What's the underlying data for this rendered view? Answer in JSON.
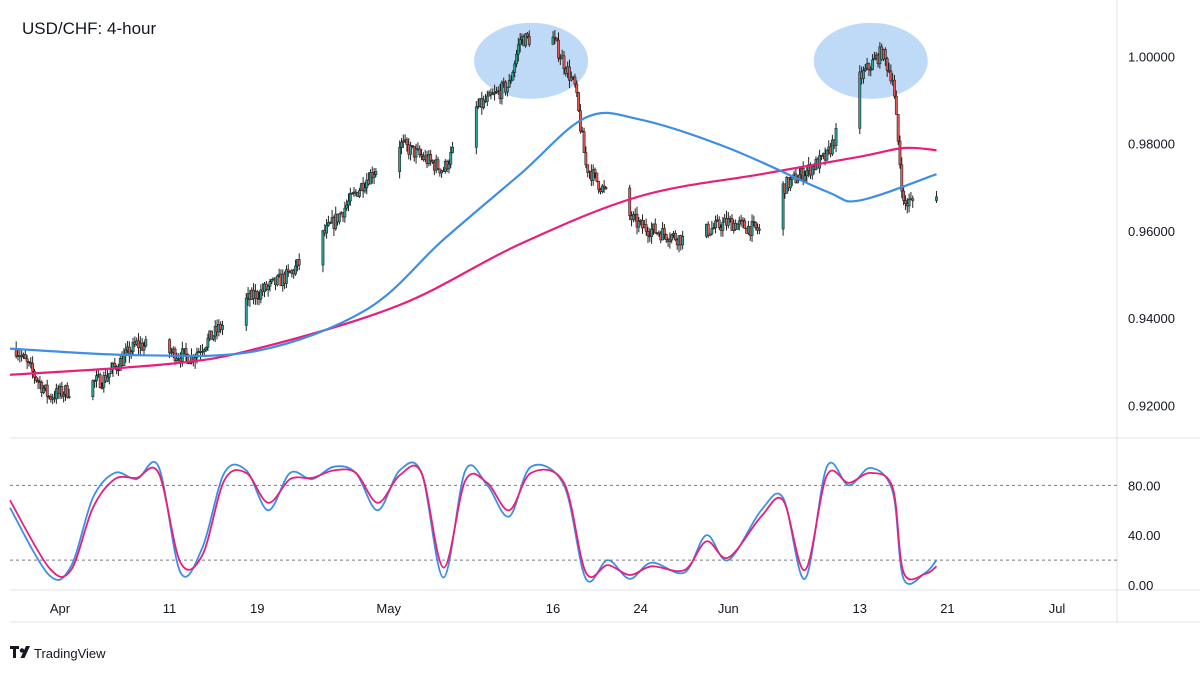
{
  "colors": {
    "bull": "#26a69a",
    "bear": "#ef5350",
    "candle": "#222222",
    "sma100": "#3d8fe6",
    "sma200": "#e91e7a",
    "stoch_k": "#3d8fe6",
    "stoch_d": "#e91e7a",
    "highlight": "#a9cdf4",
    "grid": "#e0e3eb",
    "dash": "#787b86"
  },
  "brand": {
    "icon": "tradingview-logo-icon",
    "label": "TradingView"
  },
  "chart_data": [
    {
      "type": "candlestick",
      "title": "USD/CHF: 4-hour",
      "x_ticks": [
        "Apr",
        "11",
        "19",
        "May",
        "16",
        "24",
        "Jun",
        "13",
        "21",
        "Jul"
      ],
      "y_ticks": [
        "1.00000",
        "0.98000",
        "0.96000",
        "0.94000",
        "0.92000"
      ],
      "ylim": [
        0.9125,
        1.0118
      ],
      "price_path": [
        {
          "date": "Mar 28",
          "close": 0.933
        },
        {
          "date": "Mar 31",
          "close": 0.922
        },
        {
          "date": "Apr 5",
          "close": 0.926
        },
        {
          "date": "Apr 8",
          "close": 0.934
        },
        {
          "date": "Apr 13",
          "close": 0.931
        },
        {
          "date": "Apr 18",
          "close": 0.944
        },
        {
          "date": "Apr 22",
          "close": 0.95
        },
        {
          "date": "Apr 26",
          "close": 0.962
        },
        {
          "date": "Apr 29",
          "close": 0.972
        },
        {
          "date": "May 2",
          "close": 0.98
        },
        {
          "date": "May 6",
          "close": 0.974
        },
        {
          "date": "May 9",
          "close": 0.988
        },
        {
          "date": "May 12",
          "close": 0.9935
        },
        {
          "date": "May 13",
          "close": 1.004
        },
        {
          "date": "May 16",
          "close": 1.004
        },
        {
          "date": "May 18",
          "close": 0.993
        },
        {
          "date": "May 19",
          "close": 0.975
        },
        {
          "date": "May 21",
          "close": 0.968
        },
        {
          "date": "May 24",
          "close": 0.961
        },
        {
          "date": "May 28",
          "close": 0.958
        },
        {
          "date": "Jun 1",
          "close": 0.962
        },
        {
          "date": "Jun 4",
          "close": 0.96
        },
        {
          "date": "Jun 6",
          "close": 0.97
        },
        {
          "date": "Jun 10",
          "close": 0.977
        },
        {
          "date": "Jun 13",
          "close": 0.995
        },
        {
          "date": "Jun 15",
          "close": 1.001
        },
        {
          "date": "Jun 16",
          "close": 0.995
        },
        {
          "date": "Jun 17",
          "close": 0.966
        },
        {
          "date": "Jun 20",
          "close": 0.969
        }
      ],
      "sma100": [
        {
          "date": "Mar 28",
          "value": 0.933
        },
        {
          "date": "Apr 8",
          "value": 0.9315
        },
        {
          "date": "Apr 19",
          "value": 0.9325
        },
        {
          "date": "Apr 29",
          "value": 0.942
        },
        {
          "date": "May 6",
          "value": 0.958
        },
        {
          "date": "May 13",
          "value": 0.973
        },
        {
          "date": "May 19",
          "value": 0.986
        },
        {
          "date": "May 24",
          "value": 0.9855
        },
        {
          "date": "Jun 1",
          "value": 0.979
        },
        {
          "date": "Jun 10",
          "value": 0.969
        },
        {
          "date": "Jun 13",
          "value": 0.967
        },
        {
          "date": "Jun 20",
          "value": 0.973
        }
      ],
      "sma200": [
        {
          "date": "Mar 28",
          "value": 0.927
        },
        {
          "date": "Apr 11",
          "value": 0.9295
        },
        {
          "date": "Apr 19",
          "value": 0.933
        },
        {
          "date": "May 2",
          "value": 0.943
        },
        {
          "date": "May 13",
          "value": 0.957
        },
        {
          "date": "May 24",
          "value": 0.968
        },
        {
          "date": "Jun 4",
          "value": 0.973
        },
        {
          "date": "Jun 13",
          "value": 0.977
        },
        {
          "date": "Jun 17",
          "value": 0.979
        },
        {
          "date": "Jun 20",
          "value": 0.9785
        }
      ],
      "highlights": [
        {
          "date_center": "May 14",
          "price_center": 0.999,
          "label": ""
        },
        {
          "date_center": "Jun 14",
          "price_center": 0.999,
          "label": ""
        }
      ]
    },
    {
      "type": "line",
      "indicator": "stochastic",
      "y_ticks": [
        "80.00",
        "40.00",
        "0.00"
      ],
      "ylim": [
        -4,
        118
      ],
      "levels": [
        80,
        20
      ],
      "series": [
        {
          "key": "k",
          "points": [
            {
              "date": "Mar 28",
              "value": 62
            },
            {
              "date": "Mar 31",
              "value": 8
            },
            {
              "date": "Apr 2",
              "value": 15
            },
            {
              "date": "Apr 4",
              "value": 70
            },
            {
              "date": "Apr 6",
              "value": 90
            },
            {
              "date": "Apr 8",
              "value": 85
            },
            {
              "date": "Apr 10",
              "value": 95
            },
            {
              "date": "Apr 12",
              "value": 10
            },
            {
              "date": "Apr 14",
              "value": 30
            },
            {
              "date": "Apr 16",
              "value": 90
            },
            {
              "date": "Apr 18",
              "value": 92
            },
            {
              "date": "Apr 20",
              "value": 60
            },
            {
              "date": "Apr 22",
              "value": 90
            },
            {
              "date": "Apr 24",
              "value": 85
            },
            {
              "date": "Apr 26",
              "value": 95
            },
            {
              "date": "Apr 28",
              "value": 90
            },
            {
              "date": "Apr 30",
              "value": 60
            },
            {
              "date": "May 2",
              "value": 92
            },
            {
              "date": "May 4",
              "value": 90
            },
            {
              "date": "May 6",
              "value": 6
            },
            {
              "date": "May 8",
              "value": 92
            },
            {
              "date": "May 10",
              "value": 80
            },
            {
              "date": "May 12",
              "value": 55
            },
            {
              "date": "May 14",
              "value": 95
            },
            {
              "date": "May 17",
              "value": 80
            },
            {
              "date": "May 19",
              "value": 5
            },
            {
              "date": "May 21",
              "value": 20
            },
            {
              "date": "May 23",
              "value": 5
            },
            {
              "date": "May 25",
              "value": 18
            },
            {
              "date": "May 28",
              "value": 10
            },
            {
              "date": "May 30",
              "value": 40
            },
            {
              "date": "Jun 1",
              "value": 20
            },
            {
              "date": "Jun 4",
              "value": 60
            },
            {
              "date": "Jun 6",
              "value": 70
            },
            {
              "date": "Jun 8",
              "value": 5
            },
            {
              "date": "Jun 10",
              "value": 95
            },
            {
              "date": "Jun 12",
              "value": 80
            },
            {
              "date": "Jun 14",
              "value": 94
            },
            {
              "date": "Jun 16",
              "value": 75
            },
            {
              "date": "Jun 17",
              "value": 5
            },
            {
              "date": "Jun 19",
              "value": 10
            },
            {
              "date": "Jun 20",
              "value": 20
            }
          ]
        },
        {
          "key": "d",
          "points": [
            {
              "date": "Mar 28",
              "value": 68
            },
            {
              "date": "Mar 31",
              "value": 14
            },
            {
              "date": "Apr 2",
              "value": 12
            },
            {
              "date": "Apr 4",
              "value": 62
            },
            {
              "date": "Apr 6",
              "value": 85
            },
            {
              "date": "Apr 8",
              "value": 86
            },
            {
              "date": "Apr 10",
              "value": 90
            },
            {
              "date": "Apr 12",
              "value": 18
            },
            {
              "date": "Apr 14",
              "value": 24
            },
            {
              "date": "Apr 16",
              "value": 84
            },
            {
              "date": "Apr 18",
              "value": 90
            },
            {
              "date": "Apr 20",
              "value": 66
            },
            {
              "date": "Apr 22",
              "value": 85
            },
            {
              "date": "Apr 24",
              "value": 86
            },
            {
              "date": "Apr 26",
              "value": 92
            },
            {
              "date": "Apr 28",
              "value": 90
            },
            {
              "date": "Apr 30",
              "value": 66
            },
            {
              "date": "May 2",
              "value": 88
            },
            {
              "date": "May 4",
              "value": 90
            },
            {
              "date": "May 6",
              "value": 14
            },
            {
              "date": "May 8",
              "value": 84
            },
            {
              "date": "May 10",
              "value": 82
            },
            {
              "date": "May 12",
              "value": 60
            },
            {
              "date": "May 14",
              "value": 90
            },
            {
              "date": "May 17",
              "value": 82
            },
            {
              "date": "May 19",
              "value": 10
            },
            {
              "date": "May 21",
              "value": 16
            },
            {
              "date": "May 23",
              "value": 8
            },
            {
              "date": "May 25",
              "value": 15
            },
            {
              "date": "May 28",
              "value": 12
            },
            {
              "date": "May 30",
              "value": 35
            },
            {
              "date": "Jun 1",
              "value": 22
            },
            {
              "date": "Jun 4",
              "value": 55
            },
            {
              "date": "Jun 6",
              "value": 68
            },
            {
              "date": "Jun 8",
              "value": 12
            },
            {
              "date": "Jun 10",
              "value": 88
            },
            {
              "date": "Jun 12",
              "value": 82
            },
            {
              "date": "Jun 14",
              "value": 90
            },
            {
              "date": "Jun 16",
              "value": 78
            },
            {
              "date": "Jun 17",
              "value": 10
            },
            {
              "date": "Jun 19",
              "value": 9
            },
            {
              "date": "Jun 20",
              "value": 15
            }
          ]
        }
      ]
    }
  ]
}
